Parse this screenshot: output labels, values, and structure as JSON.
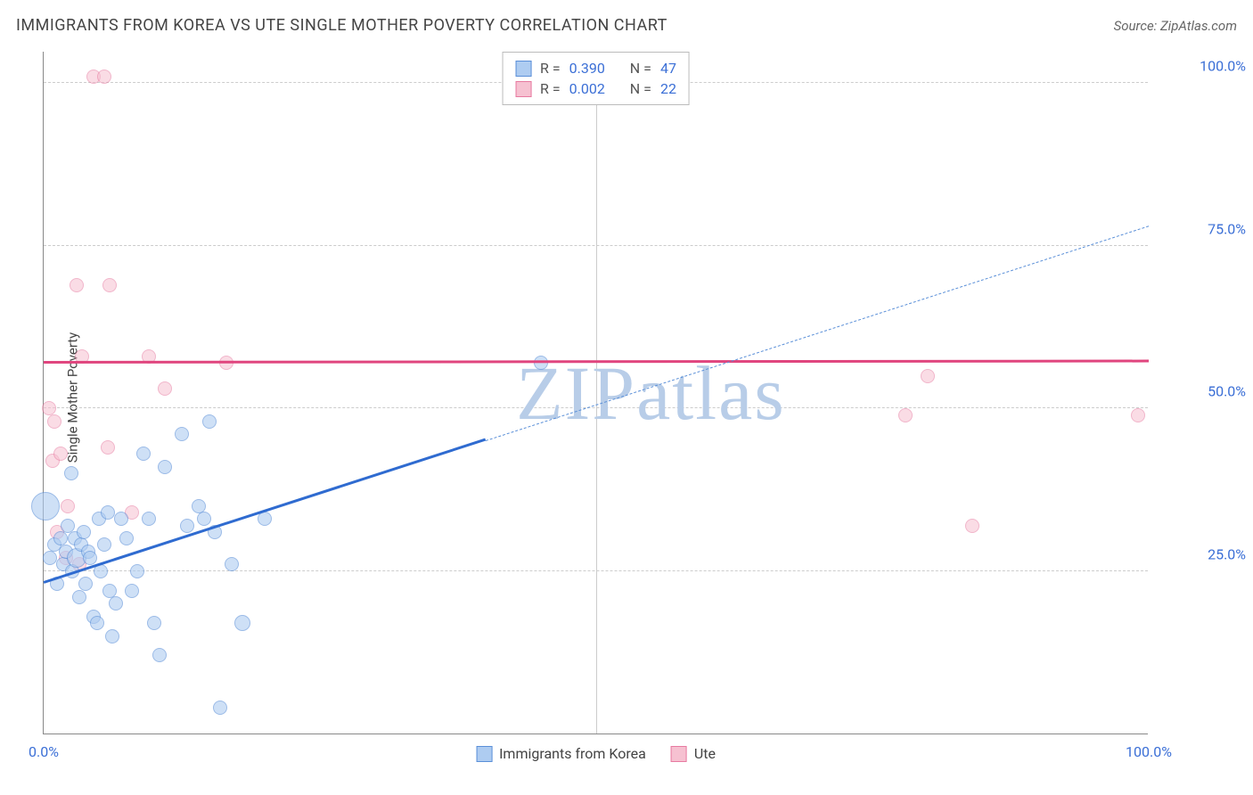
{
  "title": "IMMIGRANTS FROM KOREA VS UTE SINGLE MOTHER POVERTY CORRELATION CHART",
  "source": "Source: ZipAtlas.com",
  "y_axis_label": "Single Mother Poverty",
  "watermark": "ZIPatlas",
  "watermark_color": "#b8cde8",
  "chart": {
    "type": "scatter",
    "background_color": "#ffffff",
    "grid_color": "#cccccc",
    "axis_color": "#888888",
    "xlim": [
      0,
      100
    ],
    "ylim": [
      0,
      105
    ],
    "x_ticks": [
      {
        "v": 0,
        "label": "0.0%"
      },
      {
        "v": 50,
        "label": ""
      },
      {
        "v": 100,
        "label": "100.0%"
      }
    ],
    "y_ticks": [
      {
        "v": 25,
        "label": "25.0%"
      },
      {
        "v": 50,
        "label": "50.0%"
      },
      {
        "v": 75,
        "label": "75.0%"
      },
      {
        "v": 100,
        "label": "100.0%"
      }
    ],
    "tick_label_color": "#3b6fd6",
    "legend_top": {
      "rows": [
        {
          "swatch_fill": "#aeccf1",
          "swatch_stroke": "#5a8fd8",
          "r_label": "R =",
          "r_value": "0.390",
          "n_label": "N =",
          "n_value": "47"
        },
        {
          "swatch_fill": "#f6c1d1",
          "swatch_stroke": "#e77aa0",
          "r_label": "R =",
          "r_value": "0.002",
          "n_label": "N =",
          "n_value": "22"
        }
      ],
      "value_color": "#3b6fd6",
      "label_color": "#555555"
    },
    "legend_bottom": {
      "items": [
        {
          "swatch_fill": "#aeccf1",
          "swatch_stroke": "#5a8fd8",
          "label": "Immigrants from Korea"
        },
        {
          "swatch_fill": "#f6c1d1",
          "swatch_stroke": "#e77aa0",
          "label": "Ute"
        }
      ],
      "text_color": "#444444"
    },
    "series": [
      {
        "name": "Immigrants from Korea",
        "marker_fill": "#aeccf1",
        "marker_stroke": "#5a8fd8",
        "marker_fill_opacity": 0.6,
        "marker_radius": 8,
        "trend": {
          "solid": {
            "x1": 0,
            "y1": 23,
            "x2": 40,
            "y2": 45,
            "color": "#2f6bd0",
            "width": 3
          },
          "dashed": {
            "x1": 40,
            "y1": 45,
            "x2": 100,
            "y2": 78,
            "color": "#5a8fd8",
            "width": 1.5,
            "dash": "6,5"
          }
        },
        "points": [
          {
            "x": 0.2,
            "y": 35,
            "r": 16
          },
          {
            "x": 0.6,
            "y": 27
          },
          {
            "x": 1.0,
            "y": 29
          },
          {
            "x": 1.2,
            "y": 23
          },
          {
            "x": 1.5,
            "y": 30
          },
          {
            "x": 1.8,
            "y": 26
          },
          {
            "x": 2.0,
            "y": 28
          },
          {
            "x": 2.2,
            "y": 32
          },
          {
            "x": 2.5,
            "y": 40
          },
          {
            "x": 2.6,
            "y": 25
          },
          {
            "x": 2.8,
            "y": 30
          },
          {
            "x": 3.0,
            "y": 27,
            "r": 11
          },
          {
            "x": 3.2,
            "y": 21
          },
          {
            "x": 3.4,
            "y": 29
          },
          {
            "x": 3.6,
            "y": 31
          },
          {
            "x": 3.8,
            "y": 23
          },
          {
            "x": 4.0,
            "y": 28
          },
          {
            "x": 4.2,
            "y": 27
          },
          {
            "x": 4.5,
            "y": 18
          },
          {
            "x": 4.8,
            "y": 17
          },
          {
            "x": 5.0,
            "y": 33
          },
          {
            "x": 5.2,
            "y": 25
          },
          {
            "x": 5.5,
            "y": 29
          },
          {
            "x": 5.8,
            "y": 34
          },
          {
            "x": 6.0,
            "y": 22
          },
          {
            "x": 6.2,
            "y": 15
          },
          {
            "x": 6.5,
            "y": 20
          },
          {
            "x": 7.0,
            "y": 33
          },
          {
            "x": 7.5,
            "y": 30
          },
          {
            "x": 8.0,
            "y": 22
          },
          {
            "x": 8.5,
            "y": 25
          },
          {
            "x": 9.0,
            "y": 43
          },
          {
            "x": 9.5,
            "y": 33
          },
          {
            "x": 10.0,
            "y": 17
          },
          {
            "x": 10.5,
            "y": 12
          },
          {
            "x": 11.0,
            "y": 41
          },
          {
            "x": 12.5,
            "y": 46
          },
          {
            "x": 13.0,
            "y": 32
          },
          {
            "x": 14.0,
            "y": 35
          },
          {
            "x": 14.5,
            "y": 33
          },
          {
            "x": 15.0,
            "y": 48
          },
          {
            "x": 15.5,
            "y": 31
          },
          {
            "x": 16.0,
            "y": 4
          },
          {
            "x": 17.0,
            "y": 26
          },
          {
            "x": 18.0,
            "y": 17,
            "r": 9
          },
          {
            "x": 20.0,
            "y": 33
          },
          {
            "x": 45.0,
            "y": 57
          }
        ]
      },
      {
        "name": "Ute",
        "marker_fill": "#f6c1d1",
        "marker_stroke": "#e77aa0",
        "marker_fill_opacity": 0.55,
        "marker_radius": 8,
        "trend": {
          "solid": {
            "x1": 0,
            "y1": 56.9,
            "x2": 100,
            "y2": 57.1,
            "color": "#e0457e",
            "width": 3
          }
        },
        "points": [
          {
            "x": 0.5,
            "y": 50
          },
          {
            "x": 0.8,
            "y": 42
          },
          {
            "x": 1.0,
            "y": 48
          },
          {
            "x": 1.2,
            "y": 31
          },
          {
            "x": 1.5,
            "y": 43
          },
          {
            "x": 2.0,
            "y": 27
          },
          {
            "x": 2.2,
            "y": 35
          },
          {
            "x": 3.0,
            "y": 69
          },
          {
            "x": 3.2,
            "y": 26
          },
          {
            "x": 3.5,
            "y": 58
          },
          {
            "x": 4.5,
            "y": 101
          },
          {
            "x": 5.5,
            "y": 101
          },
          {
            "x": 5.8,
            "y": 44
          },
          {
            "x": 6.0,
            "y": 69
          },
          {
            "x": 8.0,
            "y": 34
          },
          {
            "x": 9.5,
            "y": 58
          },
          {
            "x": 11.0,
            "y": 53
          },
          {
            "x": 16.5,
            "y": 57
          },
          {
            "x": 78.0,
            "y": 49
          },
          {
            "x": 80.0,
            "y": 55
          },
          {
            "x": 84.0,
            "y": 32
          },
          {
            "x": 99.0,
            "y": 49
          }
        ]
      }
    ]
  }
}
